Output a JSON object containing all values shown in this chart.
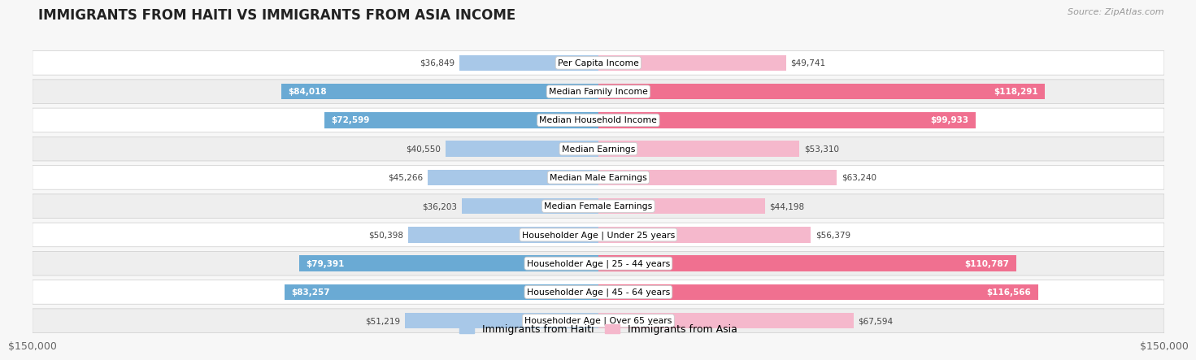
{
  "title": "IMMIGRANTS FROM HAITI VS IMMIGRANTS FROM ASIA INCOME",
  "source": "Source: ZipAtlas.com",
  "categories": [
    "Per Capita Income",
    "Median Family Income",
    "Median Household Income",
    "Median Earnings",
    "Median Male Earnings",
    "Median Female Earnings",
    "Householder Age | Under 25 years",
    "Householder Age | 25 - 44 years",
    "Householder Age | 45 - 64 years",
    "Householder Age | Over 65 years"
  ],
  "haiti_values": [
    36849,
    84018,
    72599,
    40550,
    45266,
    36203,
    50398,
    79391,
    83257,
    51219
  ],
  "asia_values": [
    49741,
    118291,
    99933,
    53310,
    63240,
    44198,
    56379,
    110787,
    116566,
    67594
  ],
  "haiti_labels": [
    "$36,849",
    "$84,018",
    "$72,599",
    "$40,550",
    "$45,266",
    "$36,203",
    "$50,398",
    "$79,391",
    "$83,257",
    "$51,219"
  ],
  "asia_labels": [
    "$49,741",
    "$118,291",
    "$99,933",
    "$53,310",
    "$63,240",
    "$44,198",
    "$56,379",
    "$110,787",
    "$116,566",
    "$67,594"
  ],
  "haiti_color_light": "#a8c8e8",
  "haiti_color_dark": "#6aaad4",
  "asia_color_light": "#f5b8cc",
  "asia_color_dark": "#f07090",
  "max_value": 150000,
  "x_tick_label_left": "$150,000",
  "x_tick_label_right": "$150,000",
  "legend_haiti": "Immigrants from Haiti",
  "legend_asia": "Immigrants from Asia",
  "background_color": "#f7f7f7",
  "row_bg_even": "#ffffff",
  "row_bg_odd": "#eeeeee",
  "haiti_dark_threshold": 65000,
  "asia_dark_threshold": 85000
}
